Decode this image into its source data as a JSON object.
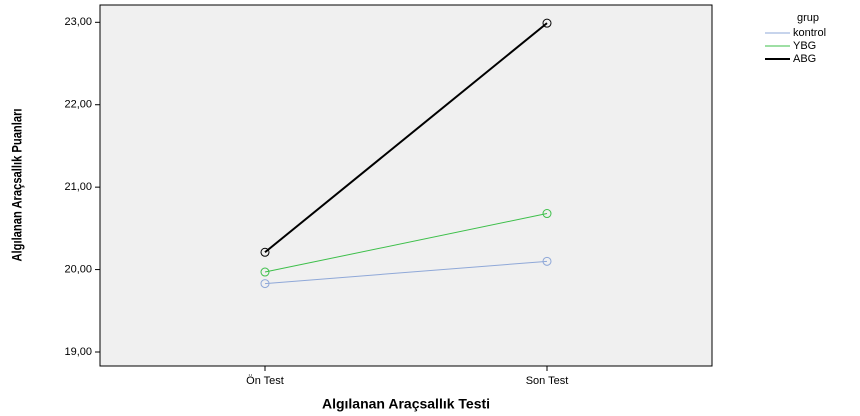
{
  "chart_data": {
    "type": "line",
    "x_label": "Algılanan Araçsallık Testi",
    "y_label": "Algılanan Araçsallık Puanları",
    "categories": [
      "Ön Test",
      "Son Test"
    ],
    "series": [
      {
        "name": "kontrol",
        "color": "#8fa8d8",
        "values": [
          19.83,
          20.1
        ]
      },
      {
        "name": "YBG",
        "color": "#3dbf4a",
        "values": [
          19.97,
          20.68
        ]
      },
      {
        "name": "ABG",
        "color": "#000000",
        "values": [
          20.21,
          22.99
        ]
      }
    ],
    "legend_title": "grup",
    "legend": "outside-right",
    "ylim": [
      18.83,
      23.21
    ],
    "yticks": [
      {
        "value": 19,
        "label": "19,00"
      },
      {
        "value": 20,
        "label": "20,00"
      },
      {
        "value": 21,
        "label": "21,00"
      },
      {
        "value": 22,
        "label": "22,00"
      },
      {
        "value": 23,
        "label": "23,00"
      }
    ],
    "grid": false
  }
}
